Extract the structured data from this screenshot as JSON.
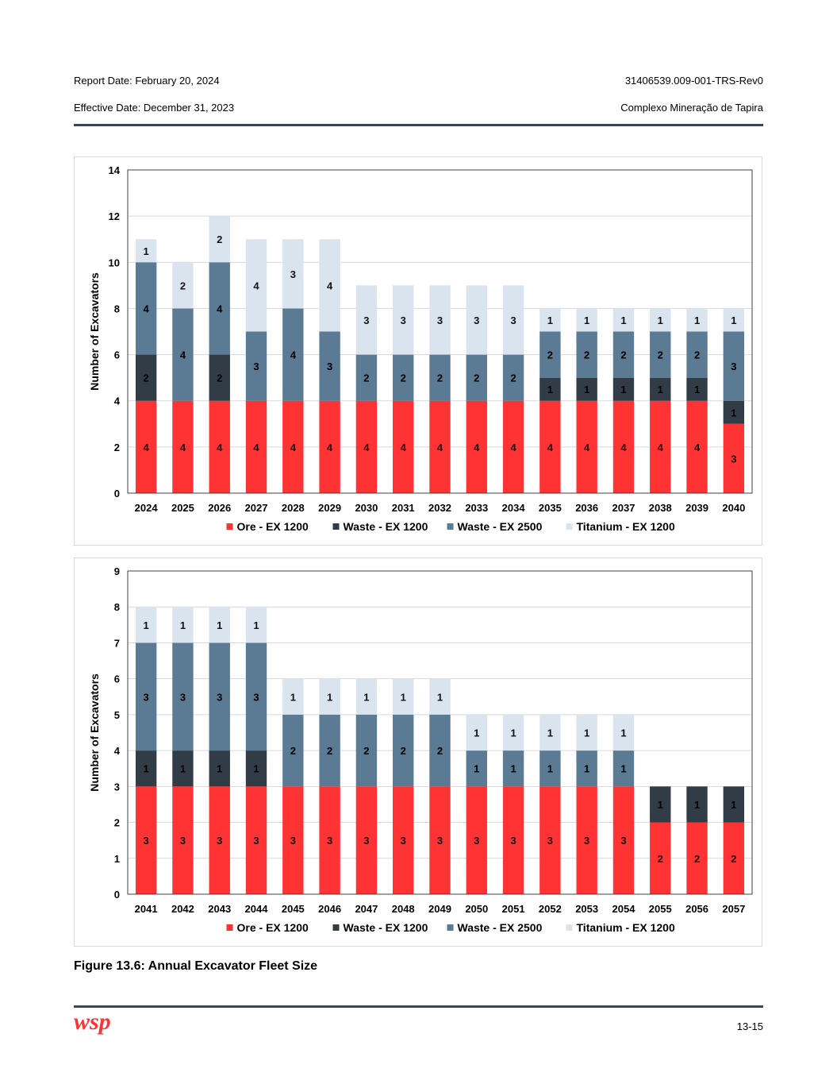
{
  "header": {
    "report_date": "Report Date: February 20, 2024",
    "report_id": "31406539.009-001-TRS-Rev0",
    "effective_date": "Effective Date: December 31, 2023",
    "project": "Complexo Mineração de Tapira"
  },
  "caption": "Figure 13.6: Annual Excavator Fleet Size",
  "footer": {
    "logo_text": "wsp",
    "page_number": "13-15"
  },
  "colors": {
    "ore": "#ff3333",
    "waste1200": "#323c46",
    "waste2500": "#5b7a94",
    "titanium": "#d9e4ef"
  },
  "chart_data": [
    {
      "type": "bar",
      "stacked": true,
      "title": "",
      "xlabel": "",
      "ylabel": "Number of Excavators",
      "ylim": [
        0,
        14
      ],
      "ytick_step": 2,
      "yticks": [
        "0",
        "2",
        "4",
        "6",
        "8",
        "10",
        "12",
        "14"
      ],
      "legend_position": "bottom",
      "categories": [
        "2024",
        "2025",
        "2026",
        "2027",
        "2028",
        "2029",
        "2030",
        "2031",
        "2032",
        "2033",
        "2034",
        "2035",
        "2036",
        "2037",
        "2038",
        "2039",
        "2040"
      ],
      "series": [
        {
          "name": "Ore - EX 1200",
          "color_key": "ore",
          "values": [
            4,
            4,
            4,
            4,
            4,
            4,
            4,
            4,
            4,
            4,
            4,
            4,
            4,
            4,
            4,
            4,
            3
          ]
        },
        {
          "name": "Waste - EX 1200",
          "color_key": "waste1200",
          "values": [
            2,
            0,
            2,
            0,
            0,
            0,
            0,
            0,
            0,
            0,
            0,
            1,
            1,
            1,
            1,
            1,
            1
          ]
        },
        {
          "name": "Waste - EX 2500",
          "color_key": "waste2500",
          "values": [
            4,
            4,
            4,
            3,
            4,
            3,
            2,
            2,
            2,
            2,
            2,
            2,
            2,
            2,
            2,
            2,
            3
          ]
        },
        {
          "name": "Titanium - EX 1200",
          "color_key": "titanium",
          "values": [
            1,
            2,
            2,
            4,
            3,
            4,
            3,
            3,
            3,
            3,
            3,
            1,
            1,
            1,
            1,
            1,
            1
          ]
        }
      ]
    },
    {
      "type": "bar",
      "stacked": true,
      "title": "",
      "xlabel": "",
      "ylabel": "Number of Excavators",
      "ylim": [
        0,
        9
      ],
      "ytick_step": 1,
      "yticks": [
        "0",
        "1",
        "2",
        "3",
        "4",
        "5",
        "6",
        "7",
        "8",
        "9"
      ],
      "legend_position": "bottom",
      "categories": [
        "2041",
        "2042",
        "2043",
        "2044",
        "2045",
        "2046",
        "2047",
        "2048",
        "2049",
        "2050",
        "2051",
        "2052",
        "2053",
        "2054",
        "2055",
        "2056",
        "2057"
      ],
      "series": [
        {
          "name": "Ore - EX 1200",
          "color_key": "ore",
          "values": [
            3,
            3,
            3,
            3,
            3,
            3,
            3,
            3,
            3,
            3,
            3,
            3,
            3,
            3,
            2,
            2,
            2
          ]
        },
        {
          "name": "Waste - EX 1200",
          "color_key": "waste1200",
          "values": [
            1,
            1,
            1,
            1,
            0,
            0,
            0,
            0,
            0,
            0,
            0,
            0,
            0,
            0,
            1,
            1,
            1
          ]
        },
        {
          "name": "Waste - EX 2500",
          "color_key": "waste2500",
          "values": [
            3,
            3,
            3,
            3,
            2,
            2,
            2,
            2,
            2,
            1,
            1,
            1,
            1,
            1,
            0,
            0,
            0
          ]
        },
        {
          "name": "Titanium - EX 1200",
          "color_key": "titanium",
          "values": [
            1,
            1,
            1,
            1,
            1,
            1,
            1,
            1,
            1,
            1,
            1,
            1,
            1,
            1,
            0,
            0,
            0
          ]
        }
      ]
    }
  ]
}
